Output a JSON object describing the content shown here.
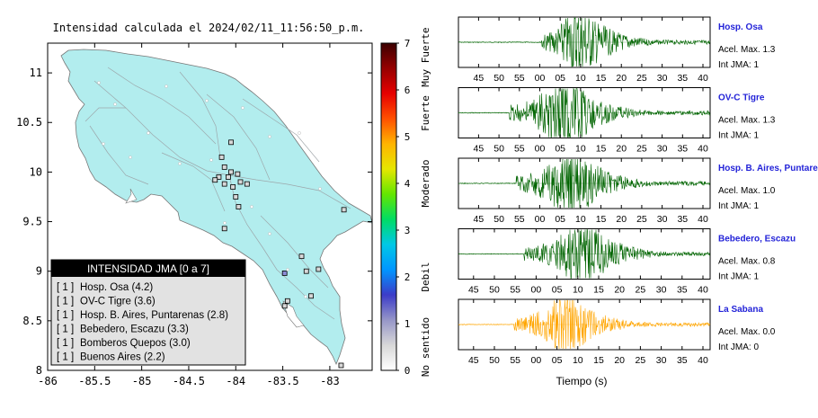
{
  "map": {
    "title": "Intensidad calculada el 2024/02/11_11:56:50_p.m.",
    "x_ticks": [
      "-86",
      "-85.5",
      "-85",
      "-84.5",
      "-84",
      "-83.5",
      "-83"
    ],
    "x_values": [
      -86,
      -85.5,
      -85,
      -84.5,
      -84,
      -83.5,
      -83
    ],
    "y_ticks": [
      "11",
      "10.5",
      "10",
      "9.5",
      "9",
      "8.5",
      "8"
    ],
    "y_values": [
      11,
      10.5,
      10,
      9.5,
      9,
      8.5,
      8
    ],
    "lon_range": [
      -86,
      -82.55
    ],
    "lat_range": [
      8,
      11.3
    ],
    "land_color": "#b2edee",
    "stations": [
      {
        "lon": -84.05,
        "lat": 10.3
      },
      {
        "lon": -84.15,
        "lat": 10.15
      },
      {
        "lon": -84.12,
        "lat": 10.05
      },
      {
        "lon": -84.05,
        "lat": 10.0
      },
      {
        "lon": -83.98,
        "lat": 9.98
      },
      {
        "lon": -84.08,
        "lat": 9.95
      },
      {
        "lon": -84.18,
        "lat": 9.95
      },
      {
        "lon": -84.22,
        "lat": 9.92
      },
      {
        "lon": -84.12,
        "lat": 9.88
      },
      {
        "lon": -84.03,
        "lat": 9.85
      },
      {
        "lon": -83.95,
        "lat": 9.9
      },
      {
        "lon": -83.88,
        "lat": 9.88
      },
      {
        "lon": -84.0,
        "lat": 9.75
      },
      {
        "lon": -83.97,
        "lat": 9.65
      },
      {
        "lon": -84.12,
        "lat": 9.43
      },
      {
        "lon": -83.3,
        "lat": 9.15
      },
      {
        "lon": -83.12,
        "lat": 9.02
      },
      {
        "lon": -83.25,
        "lat": 9.0
      },
      {
        "lon": -83.2,
        "lat": 8.75
      },
      {
        "lon": -83.45,
        "lat": 8.7
      },
      {
        "lon": -83.48,
        "lat": 8.65
      },
      {
        "lon": -82.85,
        "lat": 9.62
      },
      {
        "lon": -82.88,
        "lat": 8.05
      }
    ],
    "highlight_station": {
      "lon": -83.48,
      "lat": 8.98,
      "color": "#8c8cd6"
    }
  },
  "colorbar": {
    "ticks": [
      "0",
      "1",
      "2",
      "3",
      "4",
      "5",
      "6",
      "7"
    ],
    "values": [
      0,
      1,
      2,
      3,
      4,
      5,
      6,
      7
    ],
    "labels": [
      "No sentido",
      "Debil",
      "Moderado",
      "Fuerte",
      "Muy Fuerte"
    ],
    "label_values": [
      0.5,
      2.0,
      4.0,
      5.5,
      6.7
    ],
    "colors": [
      "#ffffff",
      "#d8d8d8",
      "#9696c8",
      "#3c3cc8",
      "#0096ff",
      "#00c8e6",
      "#00dc64",
      "#64e600",
      "#e6e600",
      "#ffb400",
      "#ff5000",
      "#e60000",
      "#960000",
      "#3c0000"
    ]
  },
  "legend": {
    "title": "INTENSIDAD JMA [0 a 7]",
    "items": [
      {
        "level": "[ 1 ]",
        "text": "Hosp. Osa (4.2)"
      },
      {
        "level": "[ 1 ]",
        "text": "OV-C Tigre (3.6)"
      },
      {
        "level": "[ 1 ]",
        "text": "Hosp. B. Aires, Puntarenas (2.8)"
      },
      {
        "level": "[ 1 ]",
        "text": "Bebedero, Escazu (3.3)"
      },
      {
        "level": "[ 1 ]",
        "text": "Bomberos Quepos (3.0)"
      },
      {
        "level": "[ 1 ]",
        "text": "Buenos Aires (2.2)"
      }
    ]
  },
  "waveforms": {
    "xlabel": "Tiempo (s)",
    "tick_labels": [
      "45",
      "50",
      "55",
      "00",
      "05",
      "10",
      "15",
      "20",
      "25",
      "30",
      "35",
      "40"
    ],
    "traces": [
      {
        "station": "Hosp. Osa",
        "accel": "Acel. Max. 1.3",
        "intensity": "Int JMA: 1",
        "color": "#006400",
        "onset": 0.33,
        "peak": 0.47,
        "amp": 1.0,
        "xstart": 0.08
      },
      {
        "station": "OV-C Tigre",
        "accel": "Acel. Max. 1.3",
        "intensity": "Int JMA: 1",
        "color": "#006400",
        "onset": 0.2,
        "peak": 0.43,
        "amp": 1.0,
        "xstart": 0.08
      },
      {
        "station": "Hosp. B. Aires, Puntare",
        "accel": "Acel. Max. 1.0",
        "intensity": "Int JMA: 1",
        "color": "#006400",
        "onset": 0.23,
        "peak": 0.45,
        "amp": 1.0,
        "xstart": 0.08
      },
      {
        "station": "Bebedero, Escazu",
        "accel": "Acel. Max. 0.8",
        "intensity": "Int JMA: 1",
        "color": "#006400",
        "onset": 0.26,
        "peak": 0.5,
        "amp": 0.9,
        "xstart": 0.06
      },
      {
        "station": "La Sabana",
        "accel": "Acel. Max. 0.0",
        "intensity": "Int JMA: 0",
        "color": "#ffa500",
        "onset": 0.22,
        "peak": 0.43,
        "amp": 0.85,
        "xstart": 0.06
      }
    ]
  }
}
